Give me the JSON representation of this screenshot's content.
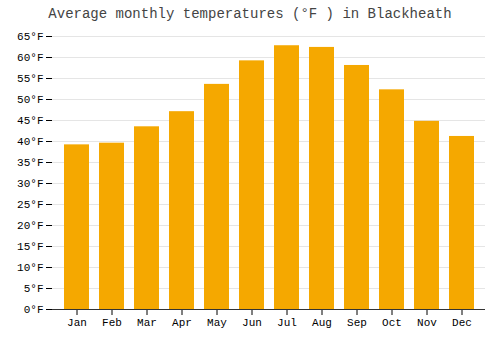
{
  "chart_data": {
    "type": "bar",
    "title": "Average monthly temperatures (°F ) in Blackheath",
    "categories": [
      "Jan",
      "Feb",
      "Mar",
      "Apr",
      "May",
      "Jun",
      "Jul",
      "Aug",
      "Sep",
      "Oct",
      "Nov",
      "Dec"
    ],
    "values": [
      39.2,
      39.6,
      43.5,
      47.1,
      53.6,
      59.2,
      62.8,
      62.4,
      58.1,
      52.3,
      44.8,
      41.2
    ],
    "color": "#F5A800",
    "ylim": [
      0,
      65
    ],
    "yticks": [
      {
        "value": 0,
        "label": "0°F"
      },
      {
        "value": 5,
        "label": "5°F"
      },
      {
        "value": 10,
        "label": "10°F"
      },
      {
        "value": 15,
        "label": "15°F"
      },
      {
        "value": 20,
        "label": "20°F"
      },
      {
        "value": 25,
        "label": "25°F"
      },
      {
        "value": 30,
        "label": "30°F"
      },
      {
        "value": 35,
        "label": "35°F"
      },
      {
        "value": 40,
        "label": "40°F"
      },
      {
        "value": 45,
        "label": "45°F"
      },
      {
        "value": 50,
        "label": "50°F"
      },
      {
        "value": 55,
        "label": "55°F"
      },
      {
        "value": 60,
        "label": "60°F"
      },
      {
        "value": 65,
        "label": "65°F"
      }
    ],
    "grid": true
  }
}
